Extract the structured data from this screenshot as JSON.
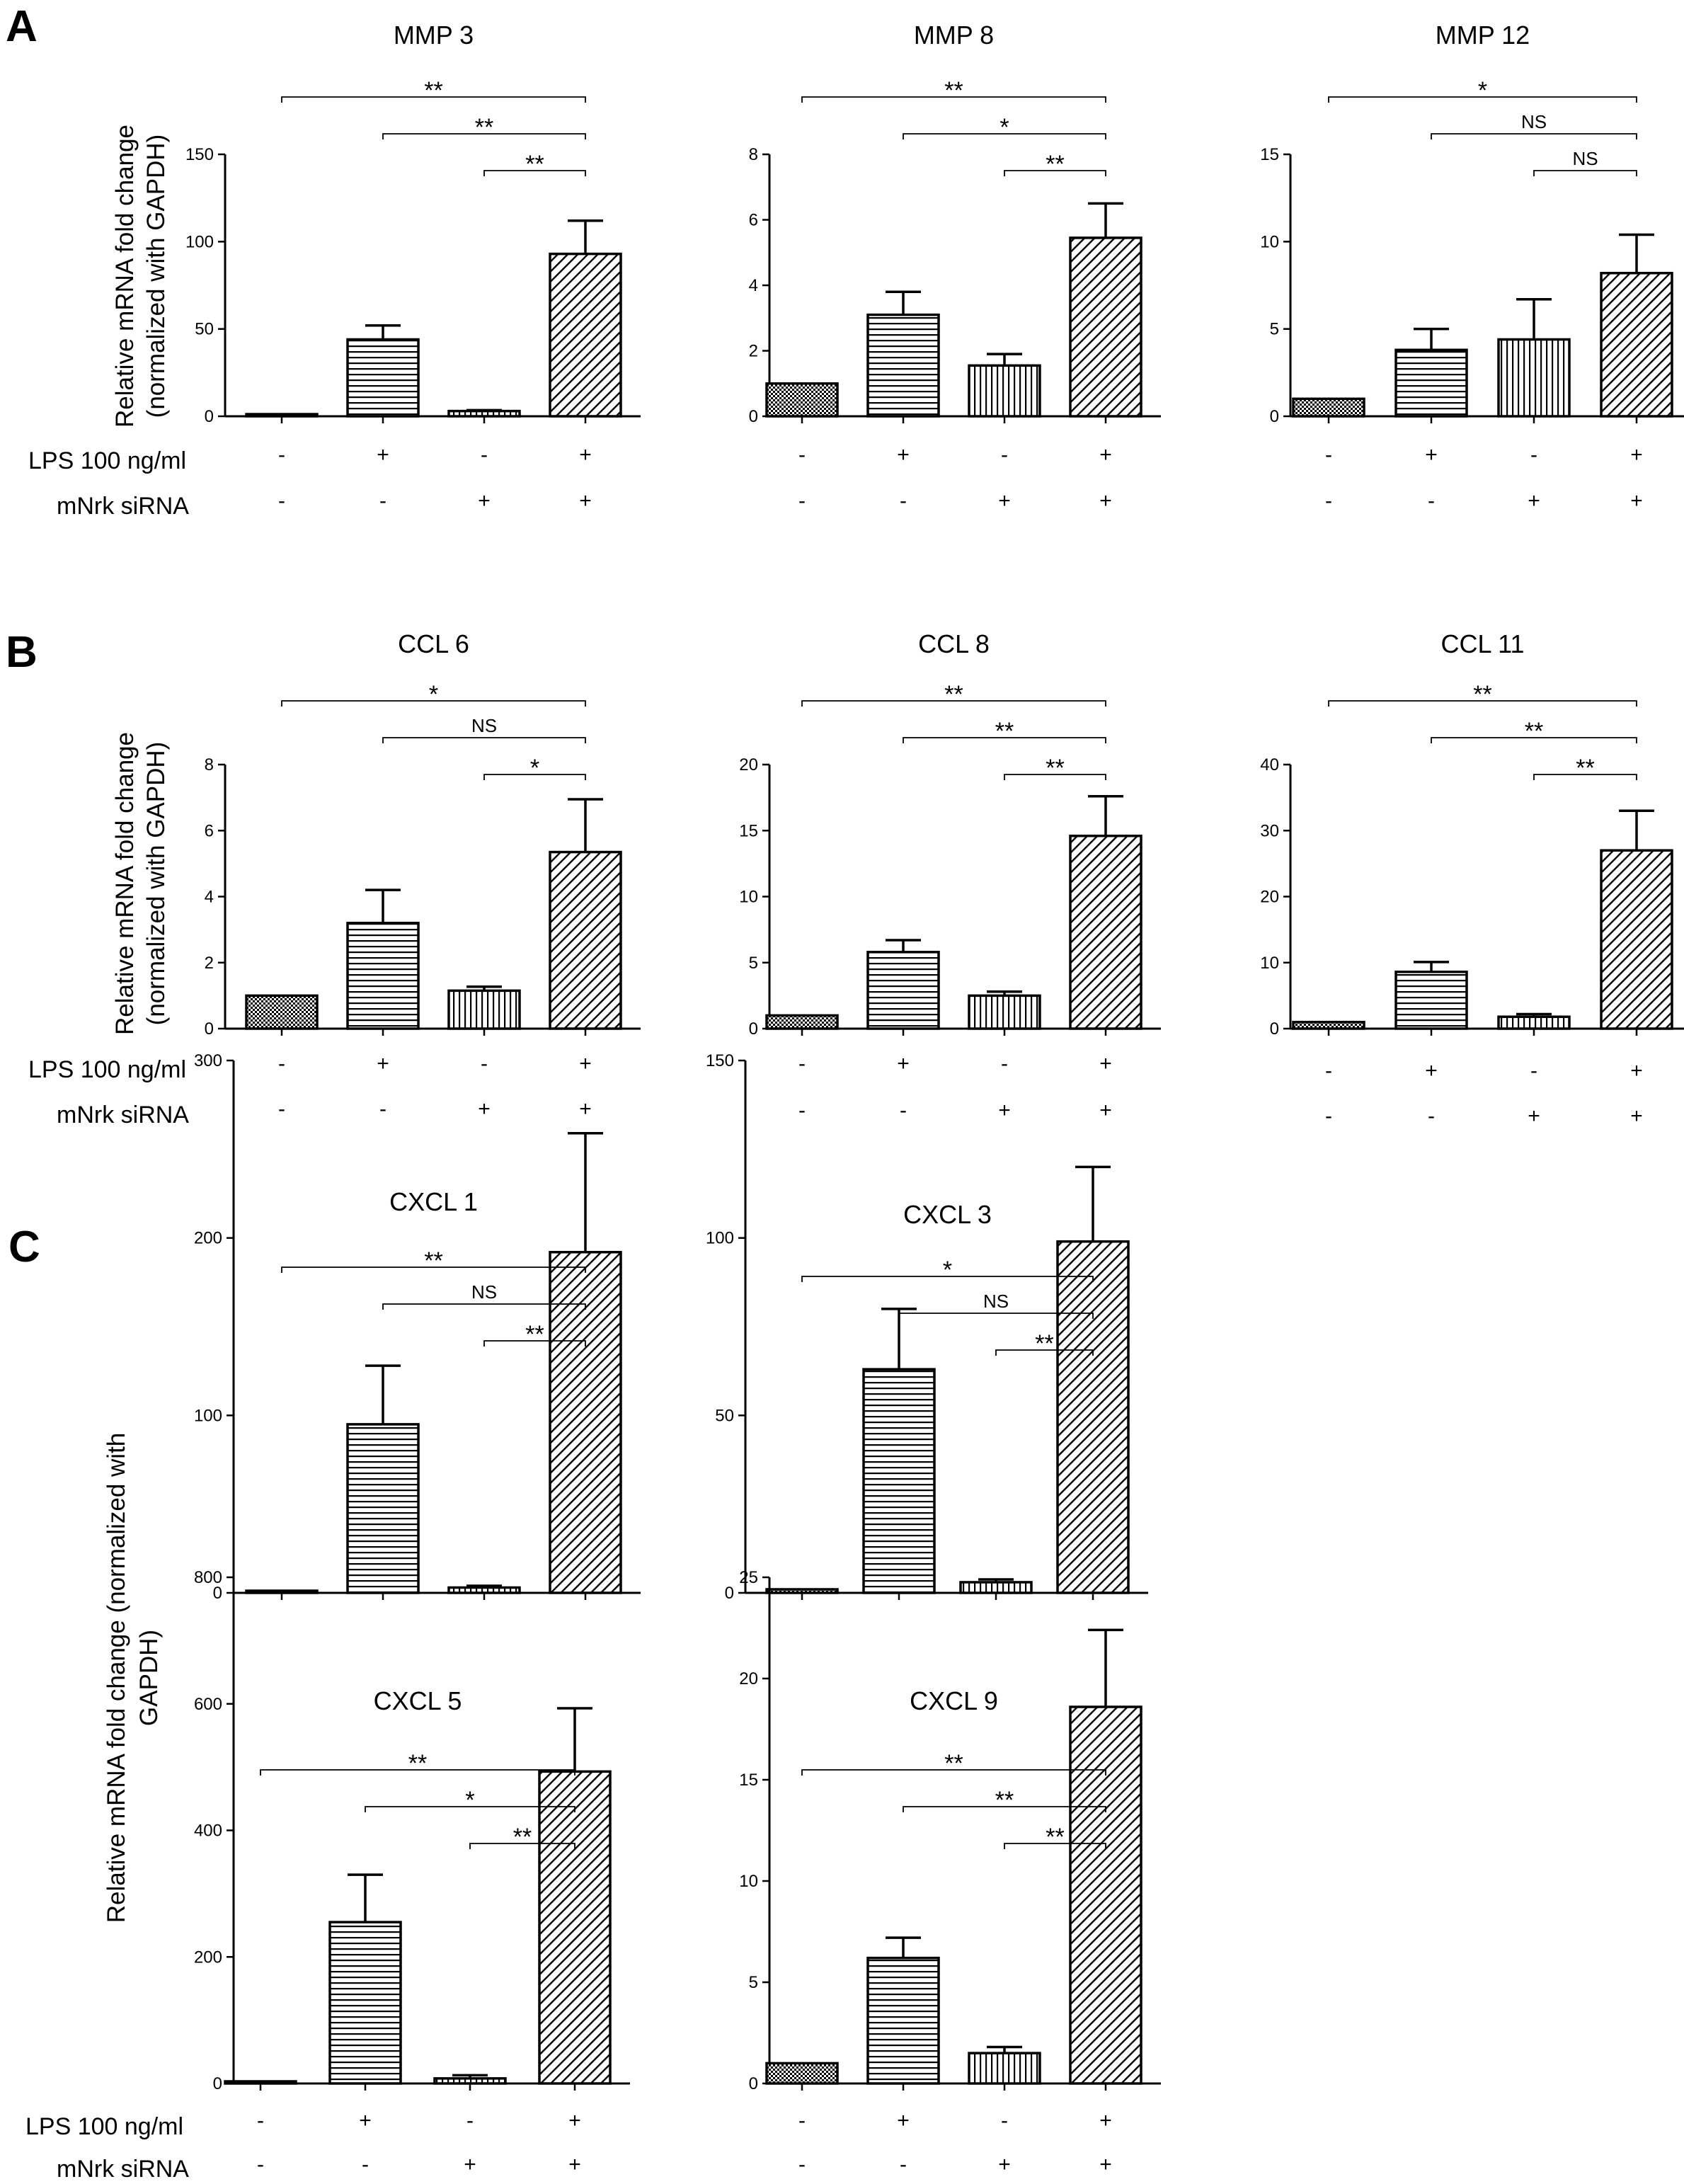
{
  "panels": [
    {
      "letter": "A",
      "ylabel": [
        "Relative mRNA fold change",
        "(normalized with GAPDH)"
      ]
    },
    {
      "letter": "B",
      "ylabel": [
        "Relative mRNA fold change",
        "(normalized with GAPDH)"
      ]
    },
    {
      "letter": "C",
      "ylabel": [
        "Relative mRNA fold change (normalized with",
        "GAPDH)"
      ]
    }
  ],
  "row_labels": {
    "lps": "LPS 100 ng/ml",
    "sirna": "mNrk siRNA"
  },
  "conditions": {
    "lps": [
      "-",
      "+",
      "-",
      "+"
    ],
    "sirna": [
      "-",
      "-",
      "+",
      "+"
    ]
  },
  "chart_data": [
    {
      "type": "bar",
      "title": "MMP 3",
      "ylim": [
        0,
        150
      ],
      "yticks": [
        0,
        50,
        100,
        150
      ],
      "values": [
        1,
        44,
        3,
        93
      ],
      "errors": [
        0,
        8,
        0.5,
        19
      ],
      "patterns": [
        "dots",
        "hlines",
        "vlines",
        "diag"
      ],
      "significance": [
        {
          "from": 0,
          "to": 3,
          "label": "**"
        },
        {
          "from": 1,
          "to": 3,
          "label": "**"
        },
        {
          "from": 2,
          "to": 3,
          "label": "**"
        }
      ]
    },
    {
      "type": "bar",
      "title": "MMP 8",
      "ylim": [
        0,
        8
      ],
      "yticks": [
        0,
        2,
        4,
        6,
        8
      ],
      "values": [
        1,
        3.1,
        1.55,
        5.45
      ],
      "errors": [
        0,
        0.7,
        0.35,
        1.05
      ],
      "patterns": [
        "dots",
        "hlines",
        "vlines",
        "diag"
      ],
      "significance": [
        {
          "from": 0,
          "to": 3,
          "label": "**"
        },
        {
          "from": 1,
          "to": 3,
          "label": "*"
        },
        {
          "from": 2,
          "to": 3,
          "label": "**"
        }
      ]
    },
    {
      "type": "bar",
      "title": "MMP 12",
      "ylim": [
        0,
        15
      ],
      "yticks": [
        0,
        5,
        10,
        15
      ],
      "values": [
        1,
        3.8,
        4.4,
        8.2
      ],
      "errors": [
        0,
        1.2,
        2.3,
        2.2
      ],
      "patterns": [
        "dots",
        "hlines",
        "vlines",
        "diag"
      ],
      "significance": [
        {
          "from": 0,
          "to": 3,
          "label": "*"
        },
        {
          "from": 1,
          "to": 3,
          "label": "NS"
        },
        {
          "from": 2,
          "to": 3,
          "label": "NS"
        }
      ]
    },
    {
      "type": "bar",
      "title": "CCL 6",
      "ylim": [
        0,
        8
      ],
      "yticks": [
        0,
        2,
        4,
        6,
        8
      ],
      "values": [
        1,
        3.2,
        1.15,
        5.35
      ],
      "errors": [
        0,
        1,
        0.12,
        1.6
      ],
      "patterns": [
        "dots",
        "hlines",
        "vlines",
        "diag"
      ],
      "significance": [
        {
          "from": 0,
          "to": 3,
          "label": "*"
        },
        {
          "from": 1,
          "to": 3,
          "label": "NS"
        },
        {
          "from": 2,
          "to": 3,
          "label": "*"
        }
      ]
    },
    {
      "type": "bar",
      "title": "CCL 8",
      "ylim": [
        0,
        20
      ],
      "yticks": [
        0,
        5,
        10,
        15,
        20
      ],
      "values": [
        1,
        5.8,
        2.5,
        14.6
      ],
      "errors": [
        0,
        0.9,
        0.3,
        3
      ],
      "patterns": [
        "dots",
        "hlines",
        "vlines",
        "diag"
      ],
      "significance": [
        {
          "from": 0,
          "to": 3,
          "label": "**"
        },
        {
          "from": 1,
          "to": 3,
          "label": "**"
        },
        {
          "from": 2,
          "to": 3,
          "label": "**"
        }
      ]
    },
    {
      "type": "bar",
      "title": "CCL 11",
      "ylim": [
        0,
        40
      ],
      "yticks": [
        0,
        10,
        20,
        30,
        40
      ],
      "values": [
        1,
        8.6,
        1.8,
        27
      ],
      "errors": [
        0,
        1.5,
        0.4,
        6
      ],
      "patterns": [
        "dots",
        "hlines",
        "vlines",
        "diag"
      ],
      "significance": [
        {
          "from": 0,
          "to": 3,
          "label": "**"
        },
        {
          "from": 1,
          "to": 3,
          "label": "**"
        },
        {
          "from": 2,
          "to": 3,
          "label": "**"
        }
      ]
    },
    {
      "type": "bar",
      "title": "CXCL 1",
      "ylim": [
        0,
        300
      ],
      "yticks": [
        0,
        100,
        200,
        300
      ],
      "values": [
        1,
        95,
        3,
        192
      ],
      "errors": [
        0,
        33,
        1,
        67
      ],
      "patterns": [
        "dots",
        "hlines",
        "vlines",
        "diag"
      ],
      "significance": [
        {
          "from": 0,
          "to": 3,
          "label": "**"
        },
        {
          "from": 1,
          "to": 3,
          "label": "NS"
        },
        {
          "from": 2,
          "to": 3,
          "label": "**"
        }
      ]
    },
    {
      "type": "bar",
      "title": "CXCL 3",
      "ylim": [
        0,
        150
      ],
      "yticks": [
        0,
        50,
        100,
        150
      ],
      "values": [
        1,
        63,
        3,
        99
      ],
      "errors": [
        0,
        17,
        0.8,
        21
      ],
      "patterns": [
        "dots",
        "hlines",
        "vlines",
        "diag"
      ],
      "significance": [
        {
          "from": 0,
          "to": 3,
          "label": "*"
        },
        {
          "from": 1,
          "to": 3,
          "label": "NS"
        },
        {
          "from": 2,
          "to": 3,
          "label": "**"
        }
      ]
    },
    {
      "type": "bar",
      "title": "CXCL 5",
      "ylim": [
        0,
        800
      ],
      "yticks": [
        0,
        200,
        400,
        600,
        800
      ],
      "values": [
        1,
        255,
        8,
        493
      ],
      "errors": [
        0,
        75,
        5,
        100
      ],
      "patterns": [
        "dots",
        "hlines",
        "vlines",
        "diag"
      ],
      "significance": [
        {
          "from": 0,
          "to": 3,
          "label": "**"
        },
        {
          "from": 1,
          "to": 3,
          "label": "*"
        },
        {
          "from": 2,
          "to": 3,
          "label": "**"
        }
      ]
    },
    {
      "type": "bar",
      "title": "CXCL 9",
      "ylim": [
        0,
        25
      ],
      "yticks": [
        0,
        5,
        10,
        15,
        20,
        25
      ],
      "values": [
        1,
        6.2,
        1.5,
        18.6
      ],
      "errors": [
        0,
        1,
        0.3,
        3.8
      ],
      "patterns": [
        "dots",
        "hlines",
        "vlines",
        "diag"
      ],
      "significance": [
        {
          "from": 0,
          "to": 3,
          "label": "**"
        },
        {
          "from": 1,
          "to": 3,
          "label": "**"
        },
        {
          "from": 2,
          "to": 3,
          "label": "**"
        }
      ]
    }
  ]
}
